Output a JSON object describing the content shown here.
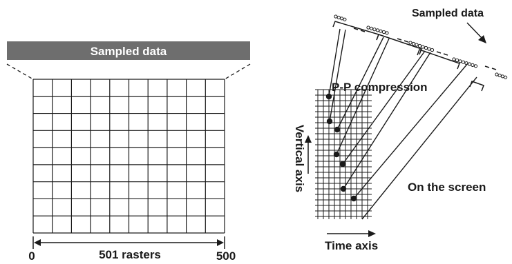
{
  "left_panel": {
    "header_label": "Sampled data",
    "axis_caption": "501 rasters",
    "axis_start": "0",
    "axis_end": "500",
    "grid_columns": 10,
    "grid_rows": 9
  },
  "right_panel": {
    "sampled_label": "Sampled data",
    "compression_label": "P-P compression",
    "screen_label": "On the screen",
    "vertical_axis_label": "Vertical axis",
    "time_axis_label": "Time axis"
  },
  "colors": {
    "header_bar": "#6e6e6e",
    "ink": "#1a1a1a",
    "header_text": "#ffffff"
  }
}
